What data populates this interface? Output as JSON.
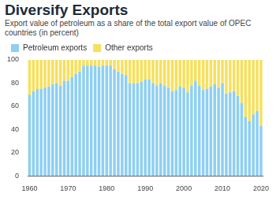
{
  "chart_data": {
    "type": "bar",
    "title": "Diversify Exports",
    "subtitle": "Export value of petroleum as a share of the total export value of OPEC countries (in percent)",
    "categories": [
      "1960",
      null,
      null,
      null,
      null,
      null,
      null,
      null,
      null,
      null,
      "1970",
      null,
      null,
      null,
      null,
      null,
      null,
      null,
      null,
      null,
      "1980",
      null,
      null,
      null,
      null,
      null,
      null,
      null,
      null,
      null,
      "1990",
      null,
      null,
      null,
      null,
      null,
      null,
      null,
      null,
      null,
      "2000",
      null,
      null,
      null,
      null,
      null,
      null,
      null,
      null,
      null,
      "2010",
      null,
      null,
      null,
      null,
      null,
      null,
      null,
      null,
      null,
      "2020"
    ],
    "series": [
      {
        "name": "Petroleum exports",
        "color": "#8ecff2",
        "values": [
          70,
          73,
          75,
          75,
          76,
          77,
          79,
          80,
          78,
          82,
          82,
          85,
          88,
          90,
          95,
          95,
          95,
          95,
          94,
          95,
          95,
          95,
          92,
          90,
          88,
          87,
          80,
          80,
          80,
          81,
          83,
          83,
          80,
          78,
          80,
          78,
          76,
          73,
          74,
          77,
          76,
          72,
          78,
          82,
          78,
          74,
          75,
          77,
          79,
          76,
          80,
          71,
          72,
          73,
          69,
          63,
          51,
          47,
          53,
          56,
          43
        ]
      },
      {
        "name": "Other exports",
        "color": "#f6e05e",
        "values": [
          30,
          27,
          25,
          25,
          24,
          23,
          21,
          20,
          22,
          18,
          18,
          15,
          12,
          10,
          5,
          5,
          5,
          5,
          6,
          5,
          5,
          5,
          8,
          10,
          12,
          13,
          20,
          20,
          20,
          19,
          17,
          17,
          20,
          22,
          20,
          22,
          24,
          27,
          26,
          23,
          24,
          28,
          22,
          18,
          22,
          26,
          25,
          23,
          21,
          24,
          20,
          29,
          28,
          27,
          31,
          37,
          49,
          53,
          47,
          44,
          57
        ]
      }
    ],
    "stacked": true,
    "legend": "top",
    "ylim": [
      0,
      100
    ],
    "yticks": [
      0,
      20,
      40,
      60,
      80,
      100
    ]
  }
}
